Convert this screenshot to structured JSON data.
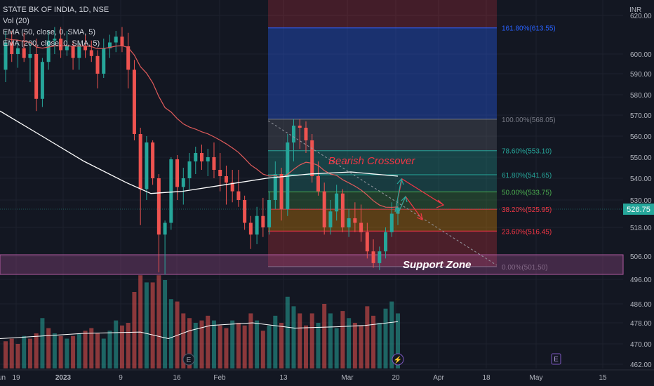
{
  "legend": {
    "symbol": "STATE BK OF INDIA, 1D, NSE",
    "vol": "Vol (20)",
    "ema50": "EMA (50, close, 0, SMA, 5)",
    "ema200": "EMA (200, close, 0, SMA, 5)"
  },
  "colors": {
    "up": "#26a69a",
    "down": "#ef5350",
    "background": "#131722",
    "grid": "#1e222d",
    "text": "#b2b5be",
    "ema50": "#e05b5b",
    "ema200": "#ffffff",
    "annotation": "#f23645",
    "support": "#9c4a8c"
  },
  "chart_data": {
    "type": "candlestick",
    "currency": "INR",
    "last_price": "526.75",
    "y_ticks_price": [
      "620.00",
      "600.00",
      "590.00",
      "580.00",
      "570.00",
      "560.00",
      "550.00",
      "540.00",
      "530.00",
      "518.00",
      "506.00",
      "496.00",
      "486.00",
      "478.00",
      "470.00",
      "462.00"
    ],
    "x_ticks": [
      "19",
      "2023",
      "9",
      "16",
      "Feb",
      "13",
      "Mar",
      "20",
      "Apr",
      "18",
      "May",
      "15",
      "Jun"
    ],
    "ohlc": [
      [
        592,
        612,
        586,
        606
      ],
      [
        606,
        612,
        596,
        600
      ],
      [
        600,
        606,
        593,
        603
      ],
      [
        603,
        611,
        596,
        598
      ],
      [
        598,
        606,
        586,
        600
      ],
      [
        600,
        608,
        572,
        578
      ],
      [
        578,
        598,
        574,
        596
      ],
      [
        596,
        612,
        592,
        607
      ],
      [
        607,
        614,
        600,
        608
      ],
      [
        608,
        614,
        598,
        602
      ],
      [
        602,
        612,
        599,
        604
      ],
      [
        604,
        607,
        592,
        598
      ],
      [
        598,
        606,
        592,
        604
      ],
      [
        604,
        610,
        598,
        602
      ],
      [
        602,
        607,
        596,
        599
      ],
      [
        599,
        602,
        583,
        590
      ],
      [
        590,
        608,
        588,
        603
      ],
      [
        603,
        610,
        598,
        606
      ],
      [
        606,
        612,
        601,
        609
      ],
      [
        609,
        614,
        601,
        604
      ],
      [
        604,
        611,
        583,
        592
      ],
      [
        592,
        597,
        558,
        561
      ],
      [
        561,
        564,
        519,
        535
      ],
      [
        535,
        560,
        530,
        557
      ],
      [
        557,
        558,
        537,
        540
      ],
      [
        540,
        542,
        499,
        515
      ],
      [
        515,
        521,
        498,
        520
      ],
      [
        520,
        550,
        517,
        549
      ],
      [
        549,
        551,
        530,
        536
      ],
      [
        536,
        545,
        528,
        540
      ],
      [
        540,
        552,
        535,
        548
      ],
      [
        548,
        555,
        542,
        552
      ],
      [
        552,
        556,
        544,
        548
      ],
      [
        548,
        554,
        541,
        550
      ],
      [
        550,
        557,
        540,
        544
      ],
      [
        544,
        552,
        534,
        541
      ],
      [
        541,
        546,
        528,
        538
      ],
      [
        538,
        544,
        529,
        534
      ],
      [
        534,
        544,
        527,
        530
      ],
      [
        530,
        532,
        517,
        520
      ],
      [
        520,
        523,
        509,
        515
      ],
      [
        515,
        527,
        511,
        523
      ],
      [
        523,
        531,
        514,
        518
      ],
      [
        518,
        534,
        515,
        530
      ],
      [
        530,
        548,
        526,
        542
      ],
      [
        542,
        545,
        521,
        526
      ],
      [
        526,
        561,
        523,
        557
      ],
      [
        557,
        568,
        548,
        565
      ],
      [
        565,
        568,
        554,
        564
      ],
      [
        564,
        567,
        552,
        558
      ],
      [
        558,
        561,
        538,
        541
      ],
      [
        541,
        548,
        532,
        534
      ],
      [
        534,
        538,
        515,
        518
      ],
      [
        518,
        530,
        515,
        525
      ],
      [
        525,
        537,
        521,
        533
      ],
      [
        533,
        535,
        516,
        518
      ],
      [
        518,
        526,
        514,
        522
      ],
      [
        522,
        529,
        516,
        520
      ],
      [
        520,
        528,
        512,
        516
      ],
      [
        516,
        520,
        505,
        508
      ],
      [
        508,
        513,
        501,
        503
      ],
      [
        503,
        510,
        500,
        508
      ],
      [
        508,
        518,
        505,
        516
      ],
      [
        516,
        529,
        514,
        524
      ],
      [
        524,
        531,
        519,
        526.75
      ]
    ],
    "volume": [
      [
        471,
        0
      ],
      [
        472,
        0
      ],
      [
        470,
        0
      ],
      [
        473,
        1
      ],
      [
        472,
        0
      ],
      [
        474,
        0
      ],
      [
        480,
        1
      ],
      [
        476,
        0
      ],
      [
        474,
        1
      ],
      [
        473,
        0
      ],
      [
        472,
        1
      ],
      [
        473,
        0
      ],
      [
        474,
        1
      ],
      [
        475,
        0
      ],
      [
        476,
        0
      ],
      [
        474,
        0
      ],
      [
        472,
        1
      ],
      [
        475,
        1
      ],
      [
        479,
        1
      ],
      [
        477,
        0
      ],
      [
        478,
        0
      ],
      [
        491,
        0
      ],
      [
        498,
        0
      ],
      [
        495,
        1
      ],
      [
        495,
        0
      ],
      [
        498,
        0
      ],
      [
        496,
        1
      ],
      [
        488,
        1
      ],
      [
        487,
        0
      ],
      [
        482,
        0
      ],
      [
        480,
        0
      ],
      [
        478,
        1
      ],
      [
        479,
        0
      ],
      [
        481,
        0
      ],
      [
        479,
        1
      ],
      [
        477,
        0
      ],
      [
        476,
        0
      ],
      [
        479,
        1
      ],
      [
        478,
        0
      ],
      [
        477,
        0
      ],
      [
        482,
        0
      ],
      [
        479,
        1
      ],
      [
        475,
        0
      ],
      [
        477,
        1
      ],
      [
        481,
        1
      ],
      [
        478,
        0
      ],
      [
        489,
        1
      ],
      [
        485,
        1
      ],
      [
        482,
        0
      ],
      [
        477,
        0
      ],
      [
        482,
        0
      ],
      [
        478,
        1
      ],
      [
        486,
        0
      ],
      [
        482,
        1
      ],
      [
        476,
        1
      ],
      [
        483,
        0
      ],
      [
        480,
        1
      ],
      [
        478,
        0
      ],
      [
        477,
        0
      ],
      [
        485,
        0
      ],
      [
        481,
        0
      ],
      [
        478,
        1
      ],
      [
        484,
        1
      ],
      [
        487,
        1
      ],
      [
        482,
        1
      ]
    ],
    "fib_levels": [
      {
        "label": "161.80%(613.55)",
        "value": 613.55,
        "color": "#2962ff"
      },
      {
        "label": "100.00%(568.05)",
        "value": 568.05,
        "color": "#787b86"
      },
      {
        "label": "78.60%(553.10)",
        "value": 553.1,
        "color": "#26a69a"
      },
      {
        "label": "61.80%(541.65)",
        "value": 541.65,
        "color": "#26a69a"
      },
      {
        "label": "50.00%(533.75)",
        "value": 533.75,
        "color": "#4caf50"
      },
      {
        "label": "38.20%(525.95)",
        "value": 525.95,
        "color": "#f23645"
      },
      {
        "label": "23.60%(516.45)",
        "value": 516.45,
        "color": "#f23645"
      },
      {
        "label": "0.00%(501.50)",
        "value": 501.5,
        "color": "#787b86"
      }
    ],
    "annotations": {
      "bearish": "Bearish Crossover",
      "support": "Support Zone"
    }
  }
}
